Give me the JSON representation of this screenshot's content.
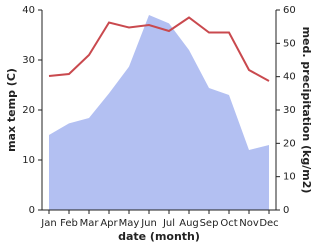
{
  "chart_data": {
    "type": "line",
    "xlabel": "date (month)",
    "ylabel": "max temp (C)",
    "y2label": "med. precipitation (kg/m2)",
    "categories": [
      "Jan",
      "Feb",
      "Mar",
      "Apr",
      "May",
      "Jun",
      "Jul",
      "Aug",
      "Sep",
      "Oct",
      "Nov",
      "Dec"
    ],
    "series": [
      {
        "color": "#b3c0f2",
        "axis": "y2",
        "fill": true,
        "values": [
          22.5,
          26,
          27.6,
          35,
          43,
          58.5,
          56,
          48,
          36.6,
          34.5,
          18,
          19.5
        ]
      },
      {
        "color": "#c9494e",
        "values": [
          26.8,
          27.2,
          31,
          37.5,
          36.5,
          37,
          35.8,
          38.5,
          35.5,
          35.5,
          28,
          25.8
        ]
      }
    ],
    "ylim": [
      0,
      40
    ],
    "yticks": [
      0,
      10,
      20,
      30,
      40
    ],
    "y2lim": [
      0,
      60
    ],
    "y2ticks": [
      0,
      10,
      20,
      30,
      40,
      50,
      60
    ]
  }
}
